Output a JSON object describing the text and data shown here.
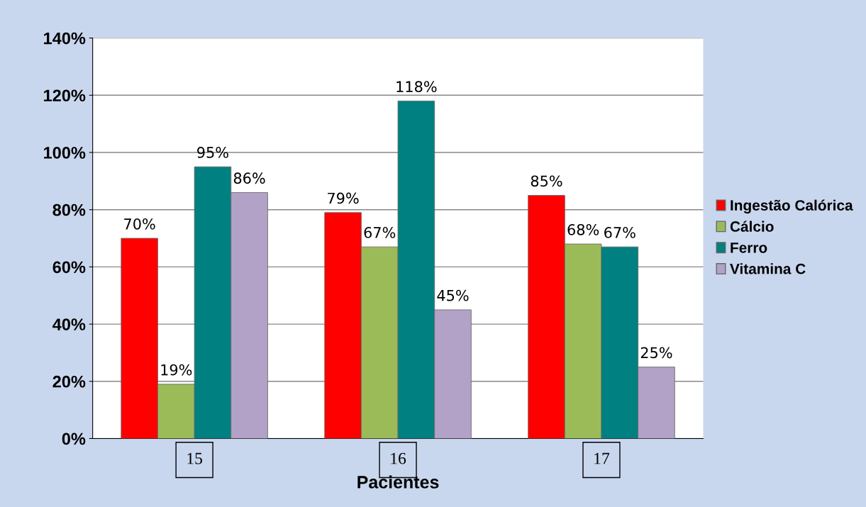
{
  "chart_data": {
    "type": "bar",
    "xlabel": "Pacientes",
    "categories": [
      "15",
      "16",
      "17"
    ],
    "series": [
      {
        "name": "Ingestão Calórica",
        "color": "#ff0000",
        "values": [
          70,
          79,
          85
        ],
        "value_labels": [
          "70%",
          "79%",
          "85%"
        ]
      },
      {
        "name": "Cálcio",
        "color": "#9bbb59",
        "values": [
          19,
          67,
          68
        ],
        "value_labels": [
          "19%",
          "67%",
          "68%"
        ]
      },
      {
        "name": "Ferro",
        "color": "#008080",
        "values": [
          95,
          118,
          67
        ],
        "value_labels": [
          "95%",
          "118%",
          "67%"
        ]
      },
      {
        "name": "Vitamina C",
        "color": "#b3a2c7",
        "values": [
          86,
          45,
          25
        ],
        "value_labels": [
          "86%",
          "45%",
          "25%"
        ]
      }
    ],
    "ylim": [
      0,
      140
    ],
    "yticks": [
      {
        "value": 0,
        "label": "0%"
      },
      {
        "value": 20,
        "label": "20%"
      },
      {
        "value": 40,
        "label": "40%"
      },
      {
        "value": 60,
        "label": "60%"
      },
      {
        "value": 80,
        "label": "80%"
      },
      {
        "value": 100,
        "label": "100%"
      },
      {
        "value": 120,
        "label": "120%"
      },
      {
        "value": 140,
        "label": "140%"
      }
    ],
    "grid": "y",
    "legend": "right"
  }
}
